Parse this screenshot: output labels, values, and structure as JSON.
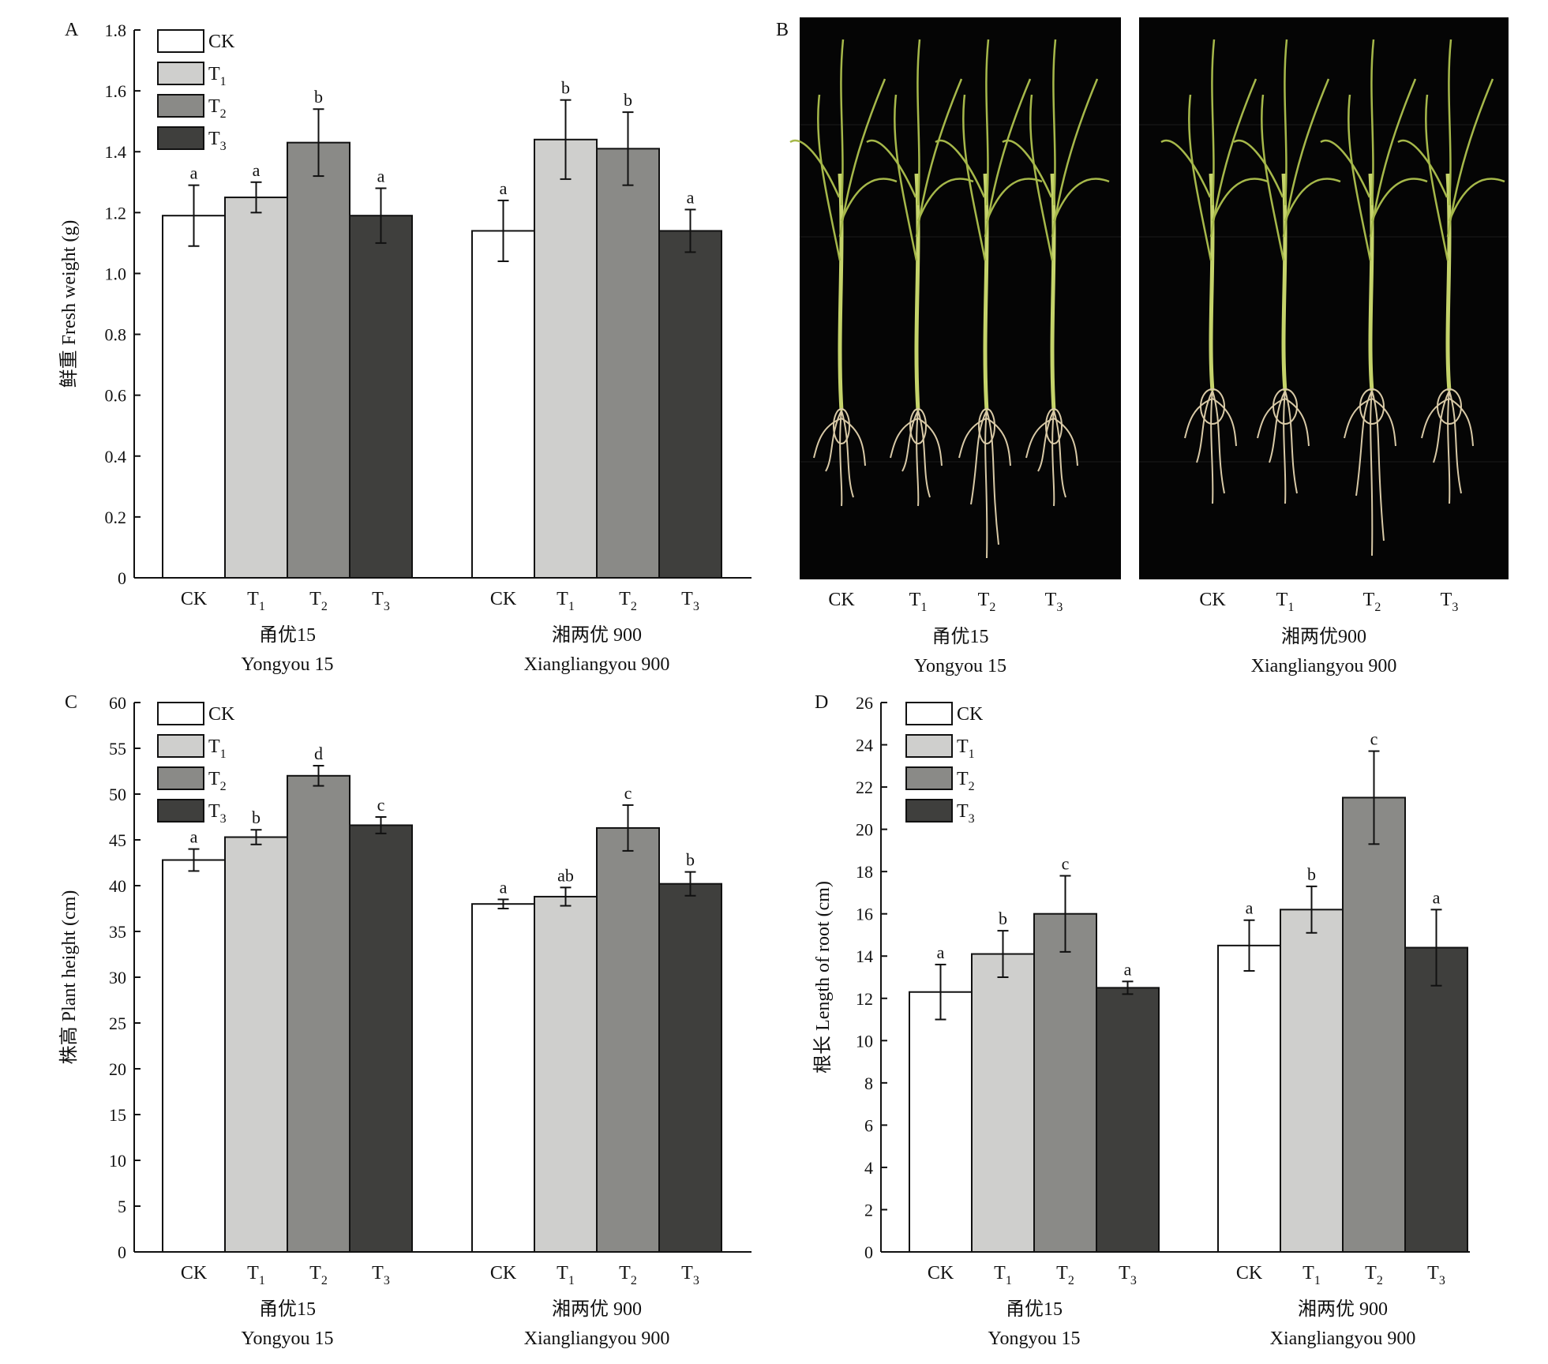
{
  "palette": {
    "CK": "#ffffff",
    "T1": "#cfcfcd",
    "T2": "#8a8a87",
    "T3": "#3f3f3d",
    "axis": "#111111",
    "photo_bg": "#050505"
  },
  "legend": [
    "CK",
    "T1",
    "T2",
    "T3"
  ],
  "groups": [
    {
      "cn": "甬优15",
      "en": "Yongyou 15"
    },
    {
      "cn": "湘两优 900",
      "en": "Xiangliangyou 900"
    }
  ],
  "photo": {
    "letter": "B",
    "treatments": [
      "CK",
      "T1",
      "T2",
      "T3"
    ],
    "groups": [
      {
        "cn": "甬优15",
        "en": "Yongyou 15"
      },
      {
        "cn": "湘两优900",
        "en": "Xiangliangyou 900"
      }
    ]
  },
  "chart_data": [
    {
      "panel": "A",
      "type": "bar",
      "ylabel": "鲜重 Fresh weight (g)",
      "ylim": [
        0,
        1.8
      ],
      "yticks": [
        0,
        0.2,
        0.4,
        0.6,
        0.8,
        1.0,
        1.2,
        1.4,
        1.6,
        1.8
      ],
      "tick_decimals": 1,
      "legend_position": "top-left",
      "categories": [
        "CK",
        "T1",
        "T2",
        "T3"
      ],
      "series": [
        {
          "group": "Yongyou 15",
          "values": [
            1.19,
            1.25,
            1.43,
            1.19
          ],
          "errors": [
            0.1,
            0.05,
            0.11,
            0.09
          ],
          "letters": [
            "a",
            "a",
            "b",
            "a"
          ]
        },
        {
          "group": "Xiangliangyou 900",
          "values": [
            1.14,
            1.44,
            1.41,
            1.14
          ],
          "errors": [
            0.1,
            0.13,
            0.12,
            0.07
          ],
          "letters": [
            "a",
            "b",
            "b",
            "a"
          ]
        }
      ]
    },
    {
      "panel": "C",
      "type": "bar",
      "ylabel": "株高 Plant height (cm)",
      "ylim": [
        0,
        60
      ],
      "yticks": [
        0,
        5,
        10,
        15,
        20,
        25,
        30,
        35,
        40,
        45,
        50,
        55,
        60
      ],
      "tick_decimals": 0,
      "legend_position": "top-left",
      "categories": [
        "CK",
        "T1",
        "T2",
        "T3"
      ],
      "series": [
        {
          "group": "Yongyou 15",
          "values": [
            42.8,
            45.3,
            52.0,
            46.6
          ],
          "errors": [
            1.2,
            0.8,
            1.1,
            0.9
          ],
          "letters": [
            "a",
            "b",
            "d",
            "c"
          ]
        },
        {
          "group": "Xiangliangyou 900",
          "values": [
            38.0,
            38.8,
            46.3,
            40.2
          ],
          "errors": [
            0.5,
            1.0,
            2.5,
            1.3
          ],
          "letters": [
            "a",
            "ab",
            "c",
            "b"
          ]
        }
      ]
    },
    {
      "panel": "D",
      "type": "bar",
      "ylabel": "根长 Length of root (cm)",
      "ylim": [
        0,
        26
      ],
      "yticks": [
        0,
        2,
        4,
        6,
        8,
        10,
        12,
        14,
        16,
        18,
        20,
        22,
        24,
        26
      ],
      "tick_decimals": 0,
      "legend_position": "top-left",
      "categories": [
        "CK",
        "T1",
        "T2",
        "T3"
      ],
      "series": [
        {
          "group": "Yongyou 15",
          "values": [
            12.3,
            14.1,
            16.0,
            12.5
          ],
          "errors": [
            1.3,
            1.1,
            1.8,
            0.3
          ],
          "letters": [
            "a",
            "b",
            "c",
            "a"
          ]
        },
        {
          "group": "Xiangliangyou 900",
          "values": [
            14.5,
            16.2,
            21.5,
            14.4
          ],
          "errors": [
            1.2,
            1.1,
            2.2,
            1.8
          ],
          "letters": [
            "a",
            "b",
            "c",
            "a"
          ]
        }
      ]
    }
  ]
}
